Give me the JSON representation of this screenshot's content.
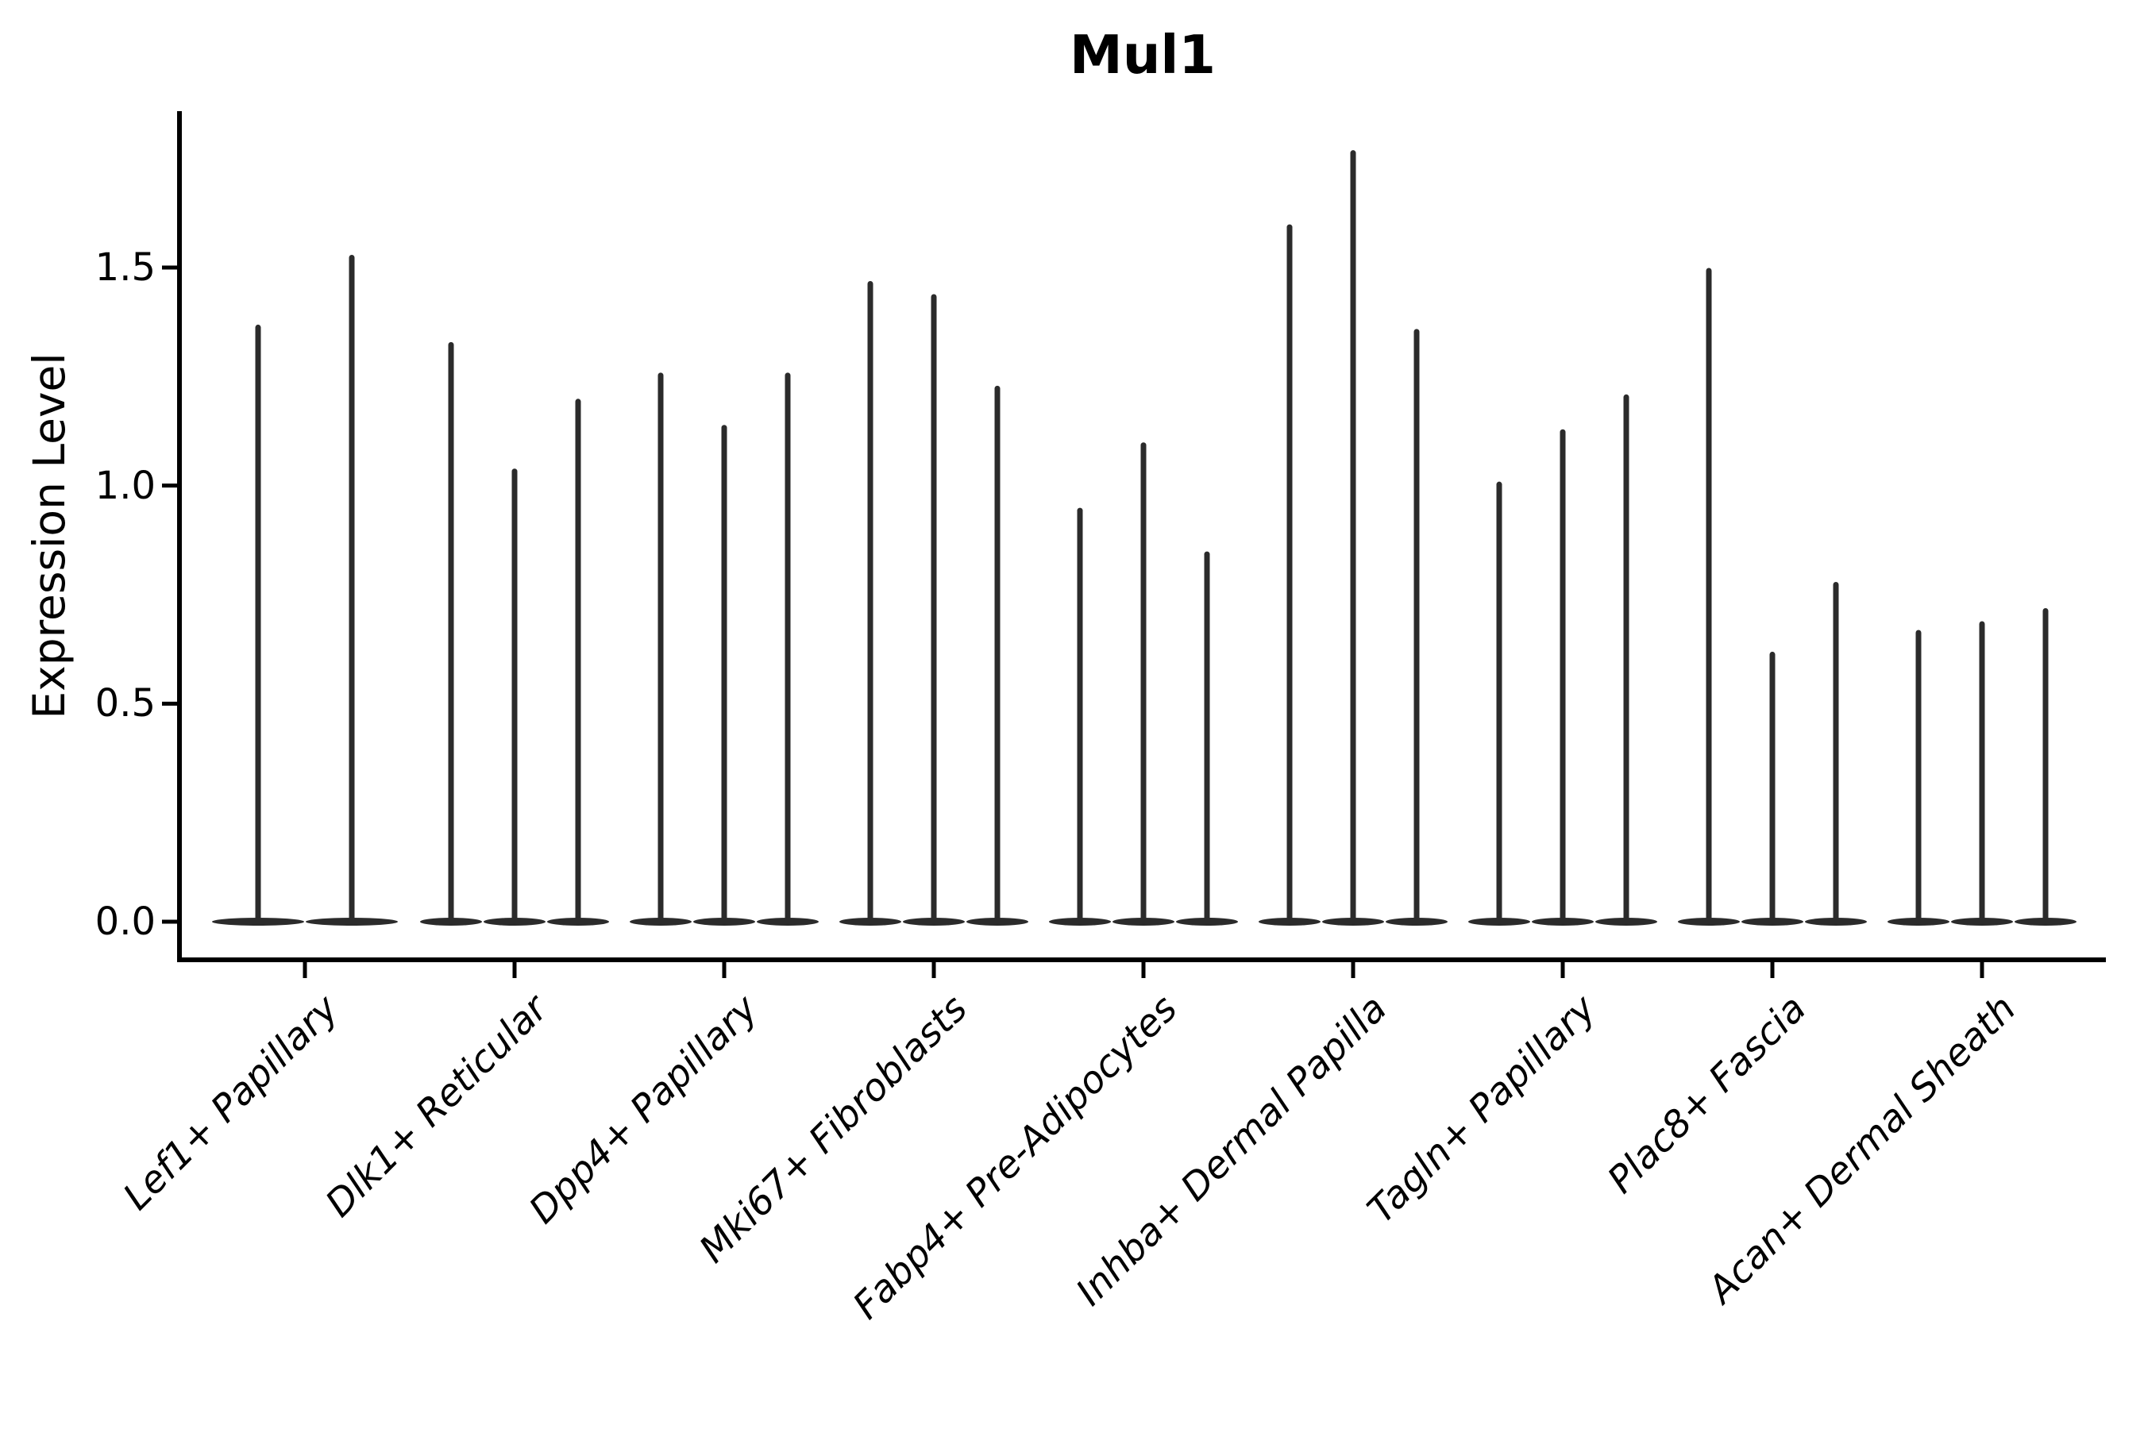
{
  "title": "Mul1",
  "axes": {
    "ylabel": "Expression Level",
    "xlabel": "",
    "ytick_labels": [
      "0.0",
      "0.5",
      "1.0",
      "1.5"
    ]
  },
  "colors": {
    "violin": "#2b2b2b",
    "axis": "#000000",
    "text": "#000000",
    "background": "#ffffff"
  },
  "chart_data": {
    "type": "violin",
    "title": "Mul1",
    "ylabel": "Expression Level",
    "xlabel": "",
    "yticks": [
      0.0,
      0.5,
      1.0,
      1.5
    ],
    "ylim": [
      -0.09,
      1.86
    ],
    "grid": false,
    "legend": "none",
    "bulk_value": 0.0,
    "categories": [
      "Lef1+ Papillary",
      "Dlk1+ Reticular",
      "Dpp4+ Papillary",
      "Mki67+ Fibroblasts",
      "Fabp4+ Pre-Adipocytes",
      "Inhba+ Dermal Papilla",
      "Tagln+ Papillary",
      "Plac8+ Fascia",
      "Acan+ Dermal Sheath"
    ],
    "groups": [
      {
        "category": "Lef1+ Papillary",
        "violin_maxima": [
          1.37,
          1.53
        ]
      },
      {
        "category": "Dlk1+ Reticular",
        "violin_maxima": [
          1.33,
          1.04,
          1.2
        ]
      },
      {
        "category": "Dpp4+ Papillary",
        "violin_maxima": [
          1.26,
          1.14,
          1.26
        ]
      },
      {
        "category": "Mki67+ Fibroblasts",
        "violin_maxima": [
          1.47,
          1.44,
          1.23
        ]
      },
      {
        "category": "Fabp4+ Pre-Adipocytes",
        "violin_maxima": [
          0.95,
          1.1,
          0.85
        ]
      },
      {
        "category": "Inhba+ Dermal Papilla",
        "violin_maxima": [
          1.6,
          1.77,
          1.36
        ]
      },
      {
        "category": "Tagln+ Papillary",
        "violin_maxima": [
          1.01,
          1.13,
          1.21
        ]
      },
      {
        "category": "Plac8+ Fascia",
        "violin_maxima": [
          1.5,
          0.62,
          0.78
        ]
      },
      {
        "category": "Acan+ Dermal Sheath",
        "violin_maxima": [
          0.67,
          0.69,
          0.72
        ]
      }
    ]
  }
}
